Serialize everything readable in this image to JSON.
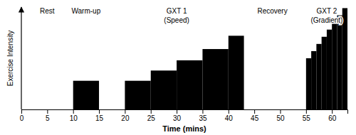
{
  "chart_data": {
    "type": "bar",
    "xlabel": "Time (mins)",
    "ylabel": "Exercise Intensity",
    "x": [
      10,
      20,
      25,
      30,
      35,
      40,
      55,
      56,
      57,
      58,
      59,
      60,
      61,
      62
    ],
    "widths": [
      5,
      5,
      5,
      5,
      5,
      3,
      1,
      1,
      1,
      1,
      1,
      1,
      1,
      1
    ],
    "values": [
      2.8,
      2.8,
      3.8,
      4.8,
      5.9,
      7.2,
      5.0,
      5.7,
      6.4,
      7.1,
      7.8,
      8.5,
      9.2,
      9.9
    ],
    "color": "#000000",
    "xlim": [
      0,
      63
    ],
    "ylim": [
      0,
      10
    ],
    "xticks": [
      0,
      5,
      10,
      15,
      20,
      25,
      30,
      35,
      40,
      45,
      50,
      55,
      60
    ],
    "yticks": [],
    "tick_labels": "x",
    "annotations": [
      {
        "text": "Rest",
        "x": 5,
        "y": 9.85
      },
      {
        "text": "Warm-up",
        "x": 12.5,
        "y": 9.85
      },
      {
        "text": "GXT 1",
        "x": 30,
        "y": 9.85
      },
      {
        "text": "(Speed)",
        "x": 30,
        "y": 8.95
      },
      {
        "text": "Recovery",
        "x": 48.5,
        "y": 9.85
      },
      {
        "text": "GXT 2",
        "x": 59,
        "y": 9.85
      },
      {
        "text": "(Gradient)",
        "x": 59,
        "y": 8.95
      }
    ]
  }
}
